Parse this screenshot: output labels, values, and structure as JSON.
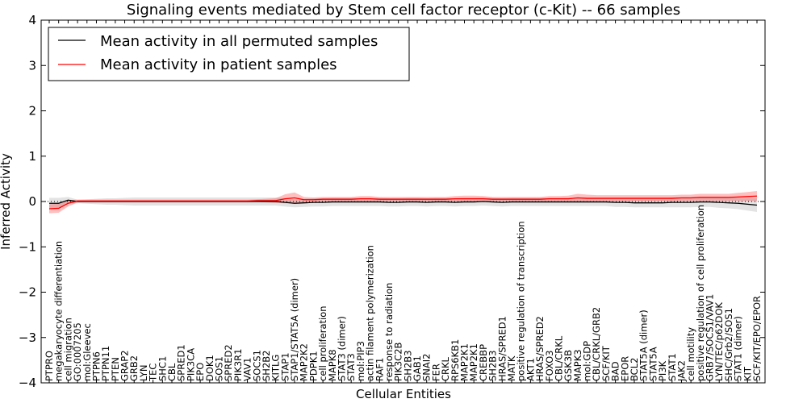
{
  "chart_data": {
    "type": "line",
    "title": "Signaling events mediated by Stem cell factor receptor (c-Kit) -- 66 samples",
    "xlabel": "Cellular Entities",
    "ylabel": "Inferred Activity",
    "ylim": [
      -4,
      4
    ],
    "yticks": [
      "4",
      "3",
      "2",
      "1",
      "0",
      "−1",
      "−2",
      "−3",
      "−4"
    ],
    "categories": [
      "PTPRO",
      "megakaryocyte differentiation",
      "cell migration",
      "GO:0007205",
      "mol:Gleevec",
      "PTPN6",
      "PTPN11",
      "PTEN",
      "GRAP2",
      "GRB2",
      "LYN",
      "TEC",
      "SHC1",
      "CBL",
      "SPRED1",
      "PIK3CA",
      "EPO",
      "DOK1",
      "SOS1",
      "SPRED2",
      "PIK3R1",
      "VAV1",
      "SOCS1",
      "SH2B2",
      "KITLG",
      "STAP1",
      "STAP1/STAT5A (dimer)",
      "MAP2K2",
      "PDPK1",
      "cell proliferation",
      "MAPK8",
      "STAT3 (dimer)",
      "STAT3",
      "mol:PIP3",
      "actin filament polymerization",
      "RAF1",
      "response to radiation",
      "PIK3C2B",
      "SH2B3",
      "GAB1",
      "SNAI2",
      "FER",
      "CRKL",
      "RPS6KB1",
      "MAP2K1",
      "MAP2K1 ",
      "CREBBP",
      "SH2B3 ",
      "HRAS/SPRED1",
      "MATK",
      "positive regulation of transcription",
      "AKT1",
      "HRAS/SPRED2",
      "FOXO3",
      "CBL/CRKL",
      "GSK3B",
      "MAPK3",
      "mol:GDP",
      "CBL/CRKL/GRB2",
      "SCF/KIT",
      "BAD",
      "EPOR",
      "BCL2",
      "STAT5A (dimer)",
      "STAT5A",
      "PI3K",
      "STAT1",
      "JAK2",
      "cell motility",
      "positive regulation of cell proliferation",
      "GRB7/SOCS1/VAV1",
      "LYN/TEC/p62DOK",
      "SHC/Grb2/SOS1",
      "STAT1 (dimer)",
      "KIT",
      "SCF/KIT/EPO/EPOR"
    ],
    "series": [
      {
        "name": "Mean activity in all permuted samples",
        "color": "#000000",
        "values": [
          -0.04,
          -0.04,
          0.03,
          0.0,
          0.0,
          0.0,
          0.0,
          0.0,
          0.0,
          0.0,
          0.0,
          0.0,
          0.0,
          0.0,
          0.0,
          0.0,
          0.0,
          0.0,
          0.0,
          0.0,
          0.0,
          0.0,
          0.0,
          0.0,
          0.0,
          -0.02,
          -0.04,
          -0.03,
          -0.02,
          -0.02,
          -0.01,
          -0.01,
          -0.01,
          -0.01,
          -0.01,
          -0.01,
          -0.02,
          -0.02,
          -0.01,
          -0.01,
          -0.02,
          -0.01,
          -0.01,
          -0.02,
          -0.01,
          -0.01,
          0.0,
          -0.01,
          -0.02,
          -0.01,
          -0.01,
          -0.01,
          -0.01,
          -0.01,
          -0.01,
          -0.01,
          -0.01,
          -0.01,
          -0.01,
          -0.01,
          -0.02,
          -0.02,
          -0.03,
          -0.03,
          -0.03,
          -0.03,
          -0.02,
          -0.02,
          -0.02,
          -0.01,
          -0.01,
          -0.02,
          -0.03,
          -0.04,
          -0.06,
          -0.08
        ],
        "band": [
          0.12,
          0.12,
          0.07,
          0.04,
          0.05,
          0.06,
          0.07,
          0.07,
          0.08,
          0.09,
          0.09,
          0.09,
          0.09,
          0.09,
          0.09,
          0.09,
          0.09,
          0.09,
          0.09,
          0.09,
          0.09,
          0.09,
          0.09,
          0.09,
          0.09,
          0.09,
          0.09,
          0.09,
          0.09,
          0.09,
          0.09,
          0.09,
          0.09,
          0.09,
          0.09,
          0.09,
          0.09,
          0.09,
          0.09,
          0.09,
          0.09,
          0.09,
          0.09,
          0.09,
          0.09,
          0.09,
          0.09,
          0.09,
          0.09,
          0.09,
          0.09,
          0.09,
          0.09,
          0.09,
          0.09,
          0.09,
          0.09,
          0.09,
          0.09,
          0.09,
          0.1,
          0.1,
          0.1,
          0.1,
          0.1,
          0.1,
          0.11,
          0.11,
          0.11,
          0.11,
          0.11,
          0.12,
          0.12,
          0.13,
          0.14,
          0.15
        ]
      },
      {
        "name": "Mean activity in patient samples",
        "color": "#ff0000",
        "values": [
          -0.16,
          -0.15,
          -0.04,
          0.01,
          0.01,
          0.01,
          0.01,
          0.01,
          0.01,
          0.01,
          0.01,
          0.01,
          0.01,
          0.01,
          0.01,
          0.01,
          0.01,
          0.01,
          0.01,
          0.01,
          0.01,
          0.01,
          0.02,
          0.02,
          0.02,
          0.06,
          0.08,
          0.04,
          0.04,
          0.05,
          0.05,
          0.05,
          0.05,
          0.06,
          0.06,
          0.05,
          0.05,
          0.05,
          0.05,
          0.05,
          0.05,
          0.05,
          0.05,
          0.06,
          0.06,
          0.06,
          0.06,
          0.05,
          0.05,
          0.05,
          0.05,
          0.05,
          0.05,
          0.06,
          0.06,
          0.06,
          0.08,
          0.07,
          0.07,
          0.07,
          0.07,
          0.07,
          0.07,
          0.07,
          0.07,
          0.07,
          0.07,
          0.08,
          0.08,
          0.09,
          0.09,
          0.09,
          0.09,
          0.1,
          0.11,
          0.12
        ],
        "band": [
          0.1,
          0.1,
          0.07,
          0.03,
          0.03,
          0.03,
          0.03,
          0.03,
          0.03,
          0.03,
          0.03,
          0.03,
          0.03,
          0.03,
          0.03,
          0.03,
          0.03,
          0.03,
          0.03,
          0.03,
          0.03,
          0.03,
          0.03,
          0.04,
          0.05,
          0.1,
          0.12,
          0.06,
          0.05,
          0.05,
          0.05,
          0.05,
          0.05,
          0.06,
          0.06,
          0.05,
          0.05,
          0.05,
          0.05,
          0.05,
          0.05,
          0.05,
          0.05,
          0.06,
          0.07,
          0.07,
          0.06,
          0.05,
          0.05,
          0.05,
          0.05,
          0.05,
          0.05,
          0.06,
          0.06,
          0.07,
          0.09,
          0.08,
          0.07,
          0.07,
          0.07,
          0.07,
          0.07,
          0.07,
          0.07,
          0.07,
          0.07,
          0.07,
          0.07,
          0.08,
          0.08,
          0.08,
          0.08,
          0.09,
          0.1,
          0.11
        ]
      }
    ],
    "legend": "top-left"
  }
}
